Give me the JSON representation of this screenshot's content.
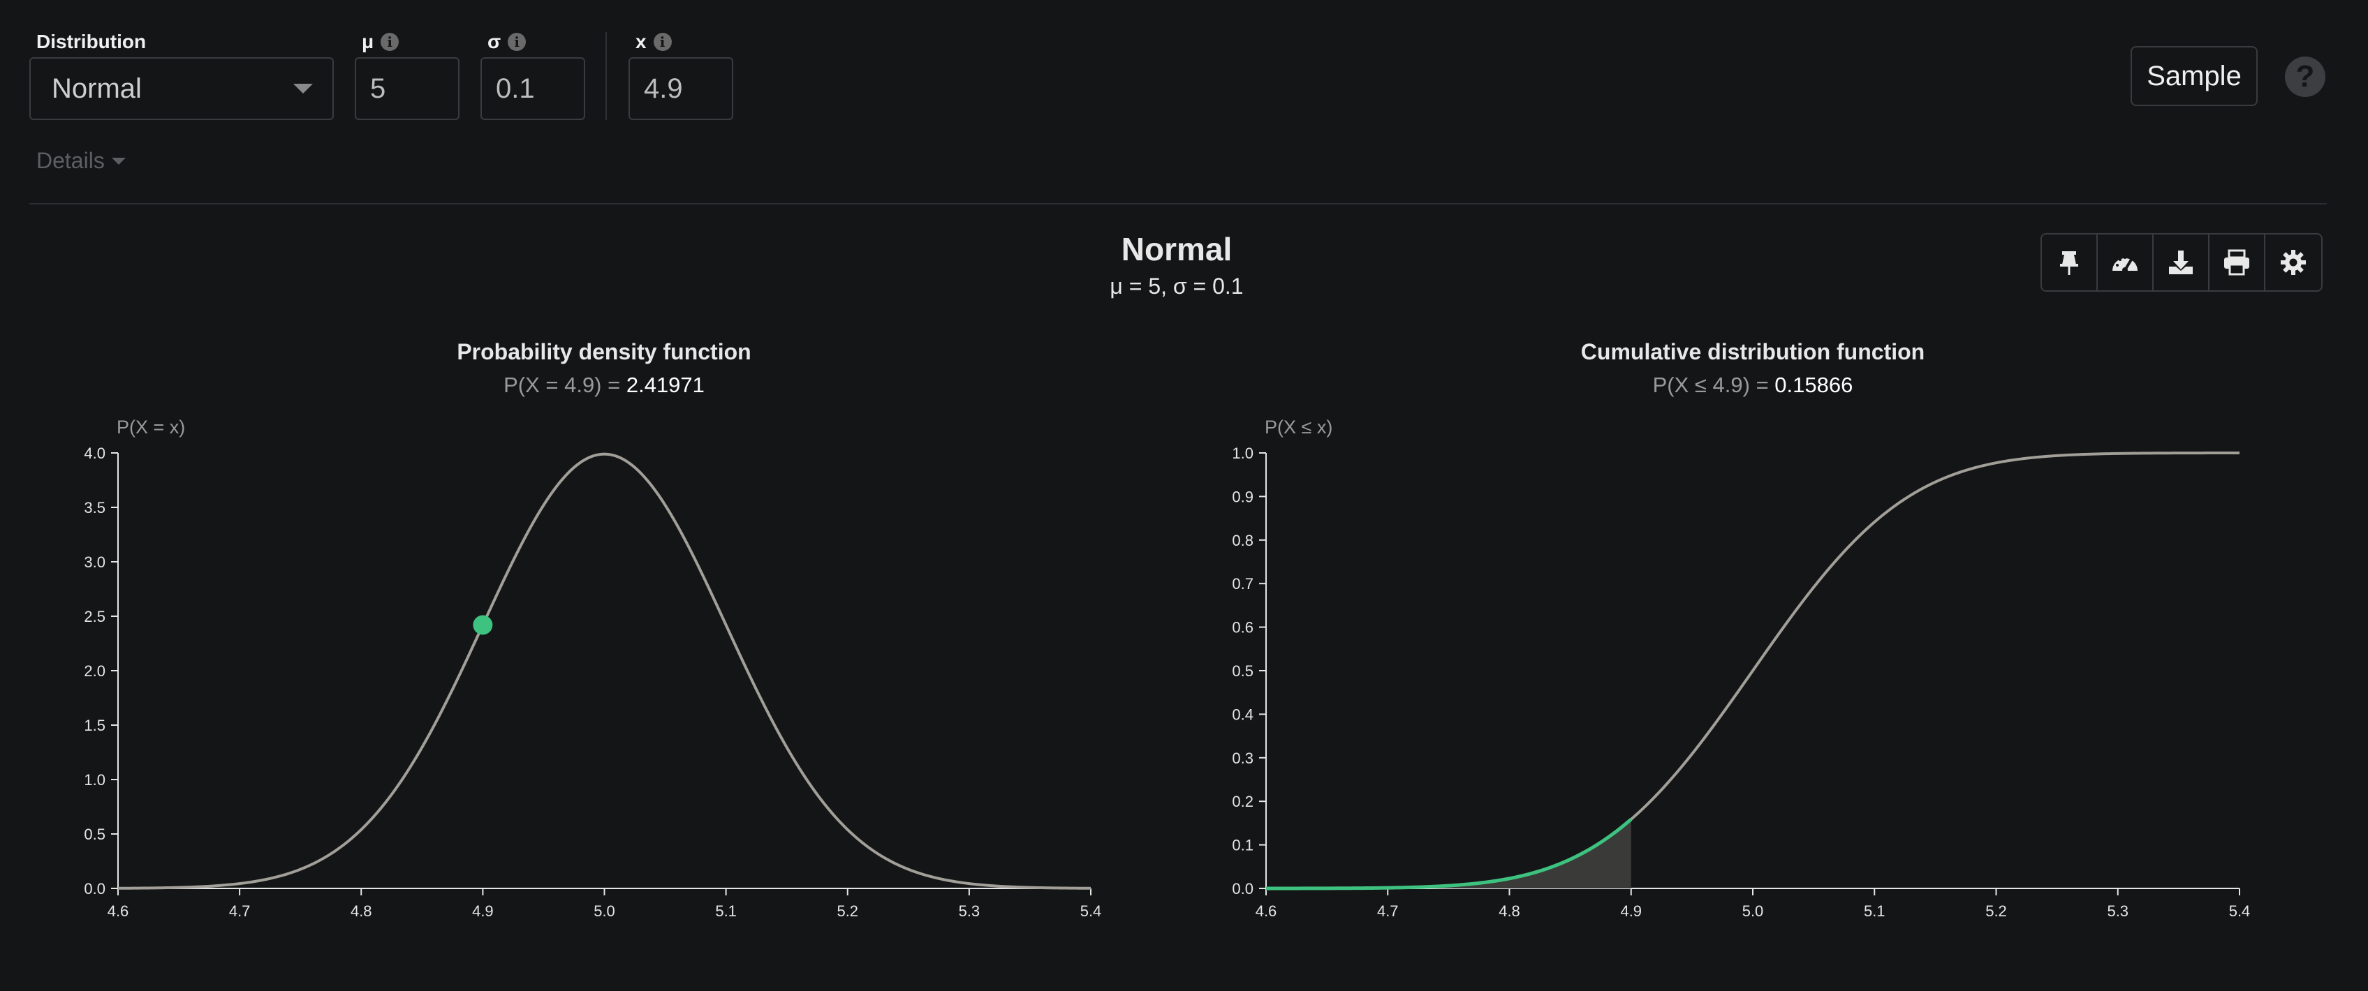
{
  "controls": {
    "distribution_label": "Distribution",
    "distribution_value": "Normal",
    "mu_label": "μ",
    "mu_value": "5",
    "sigma_label": "σ",
    "sigma_value": "0.1",
    "x_label": "x",
    "x_value": "4.9",
    "details_label": "Details",
    "sample_button": "Sample",
    "help_icon_glyph": "?"
  },
  "header": {
    "title": "Normal",
    "subtitle": "μ = 5, σ = 0.1"
  },
  "toolbar": [
    "pin-icon",
    "gauge-icon",
    "download-icon",
    "print-icon",
    "gear-icon"
  ],
  "pdf": {
    "title": "Probability density function",
    "result_label": "P(X = 4.9) = ",
    "result_value": "2.41971"
  },
  "cdf": {
    "title": "Cumulative distribution function",
    "result_label": "P(X ≤ 4.9) = ",
    "result_value": "0.15866"
  },
  "colors": {
    "background": "#141517",
    "curve": "#a29f99",
    "highlight": "#3ec27f",
    "shade": "#3a3b39"
  },
  "chart_data": [
    {
      "type": "line",
      "title": "Probability density function",
      "ylabel": "P(X = x)",
      "xlabel": "",
      "distribution": {
        "name": "Normal",
        "mu": 5,
        "sigma": 0.1
      },
      "xlim": [
        4.6,
        5.4
      ],
      "ylim": [
        0,
        4.0
      ],
      "x_ticks": [
        "4.6",
        "4.7",
        "4.8",
        "4.9",
        "5.0",
        "5.1",
        "5.2",
        "5.3",
        "5.4"
      ],
      "y_ticks": [
        "0.0",
        "0.5",
        "1.0",
        "1.5",
        "2.0",
        "2.5",
        "3.0",
        "3.5",
        "4.0"
      ],
      "x": [
        4.6,
        4.65,
        4.7,
        4.75,
        4.8,
        4.85,
        4.9,
        4.95,
        5.0,
        5.05,
        5.1,
        5.15,
        5.2,
        5.25,
        5.3,
        5.35,
        5.4
      ],
      "y": [
        0.0013,
        0.0087,
        0.0443,
        0.1753,
        0.5399,
        1.2952,
        2.4197,
        3.5207,
        3.9894,
        3.5207,
        2.4197,
        1.2952,
        0.5399,
        0.1753,
        0.0443,
        0.0087,
        0.0013
      ],
      "marker": {
        "x": 4.9,
        "y": 2.41971
      }
    },
    {
      "type": "line",
      "title": "Cumulative distribution function",
      "ylabel": "P(X ≤ x)",
      "xlabel": "",
      "distribution": {
        "name": "Normal",
        "mu": 5,
        "sigma": 0.1
      },
      "xlim": [
        4.6,
        5.4
      ],
      "ylim": [
        0,
        1.0
      ],
      "x_ticks": [
        "4.6",
        "4.7",
        "4.8",
        "4.9",
        "5.0",
        "5.1",
        "5.2",
        "5.3",
        "5.4"
      ],
      "y_ticks": [
        "0.0",
        "0.1",
        "0.2",
        "0.3",
        "0.4",
        "0.5",
        "0.6",
        "0.7",
        "0.8",
        "0.9",
        "1.0"
      ],
      "x": [
        4.6,
        4.65,
        4.7,
        4.75,
        4.8,
        4.85,
        4.9,
        4.95,
        5.0,
        5.05,
        5.1,
        5.15,
        5.2,
        5.25,
        5.3,
        5.35,
        5.4
      ],
      "y": [
        0.0,
        0.0002,
        0.0013,
        0.0062,
        0.0228,
        0.0668,
        0.1587,
        0.3085,
        0.5,
        0.6915,
        0.8413,
        0.9332,
        0.9772,
        0.9938,
        0.9987,
        0.9998,
        1.0
      ],
      "shaded_to_x": 4.9,
      "marker": {
        "x": 4.9,
        "y": 0.15866
      }
    }
  ]
}
